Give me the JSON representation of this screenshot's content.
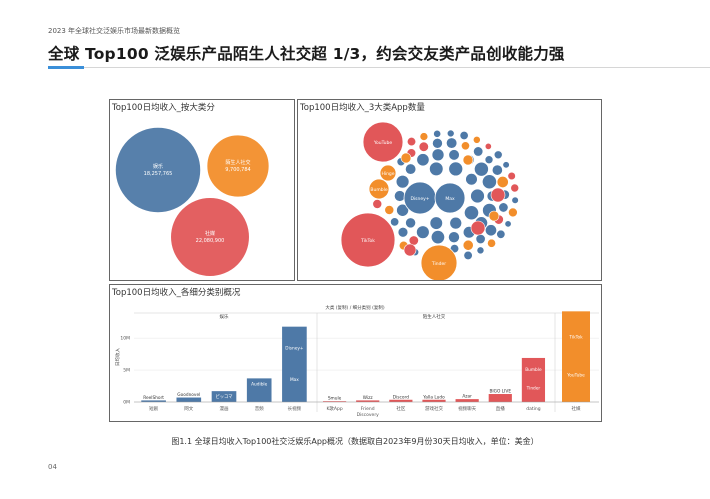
{
  "header": {
    "subtitle": "2023 年全球社交泛娱乐市场最新数据概览",
    "title": "全球 Top100 泛娱乐产品陌生人社交超 1/3，约会交友类产品创收能力强"
  },
  "colors": {
    "blue": "#4e79a7",
    "orange": "#f28e2b",
    "red": "#e15759",
    "accent": "#3a8fd9"
  },
  "panels": {
    "p1": "Top100日均收入_按大类分",
    "p2": "Top100日均收入_3大类App数量",
    "p3": "Top100日均收入_各细分类别概况"
  },
  "chart_data": [
    {
      "type": "bubble",
      "title": "Top100日均收入_按大类分",
      "bubbles": [
        {
          "name": "娱乐",
          "value": 18257765,
          "label_value": "18,257,765",
          "color": "#4e79a7"
        },
        {
          "name": "陌生人社交",
          "value": 9700784,
          "label_value": "9,700,784",
          "color": "#f28e2b"
        },
        {
          "name": "社媒",
          "value": 22080900,
          "label_value": "22,080,900",
          "color": "#e15759"
        }
      ]
    },
    {
      "type": "bubble",
      "title": "Top100日均收入_3大类App数量",
      "labeled_bubbles": [
        {
          "name": "YouTube",
          "color": "#e15759"
        },
        {
          "name": "TikTok",
          "color": "#e15759"
        },
        {
          "name": "Tinder",
          "color": "#f28e2b"
        },
        {
          "name": "Bumble",
          "color": "#f28e2b"
        },
        {
          "name": "Hinge",
          "color": "#f28e2b"
        },
        {
          "name": "Disney+",
          "color": "#4e79a7"
        },
        {
          "name": "Max",
          "color": "#4e79a7"
        }
      ]
    },
    {
      "type": "bar",
      "title": "Top100日均收入_各细分类别概况",
      "header_label": "大类 (复制) / 细分类别 (复制)",
      "ylabel": "日均收入",
      "yticks": [
        "0M",
        "5M",
        "10M"
      ],
      "ylim": [
        0,
        13
      ],
      "groups": [
        {
          "name": "娱乐",
          "color": "#4e79a7",
          "categories": [
            {
              "name": "短剧",
              "value": 0.25,
              "labels": [
                "ReelShort"
              ]
            },
            {
              "name": "网文",
              "value": 0.7,
              "labels": [
                "Goodnovel"
              ]
            },
            {
              "name": "漫画",
              "value": 1.7,
              "labels": [
                "ピッコマ"
              ]
            },
            {
              "name": "音频",
              "value": 3.7,
              "labels": [
                "Audible"
              ]
            },
            {
              "name": "长视频",
              "value": 11.8,
              "labels": [
                "Disney+",
                "Max"
              ]
            }
          ]
        },
        {
          "name": "陌生人社交",
          "color": "#e15759",
          "categories": [
            {
              "name": "K歌App",
              "value": 0.12,
              "labels": [
                "Smule"
              ]
            },
            {
              "name": "Friend Discovery",
              "value": 0.25,
              "labels": [
                "Wizz"
              ]
            },
            {
              "name": "社区",
              "value": 0.35,
              "labels": [
                "Discord"
              ]
            },
            {
              "name": "游戏社交",
              "value": 0.35,
              "labels": [
                "Yalla Ludo"
              ]
            },
            {
              "name": "视频聊天",
              "value": 0.45,
              "labels": [
                "Azar"
              ]
            },
            {
              "name": "直播",
              "value": 1.25,
              "labels": [
                "BIGO LIVE"
              ]
            },
            {
              "name": "dating",
              "value": 6.9,
              "labels": [
                "Bumble",
                "Tinder"
              ]
            }
          ]
        },
        {
          "name": "社媒",
          "color": "#f28e2b",
          "categories": [
            {
              "name": "社媒",
              "value": 14.2,
              "labels": [
                "TikTok",
                "YouTube"
              ]
            }
          ]
        }
      ]
    }
  ],
  "caption": "图1.1  全球日均收入Top100社交泛娱乐App概况（数据取自2023年9月份30天日均收入，单位：美金）",
  "page_number": "04"
}
